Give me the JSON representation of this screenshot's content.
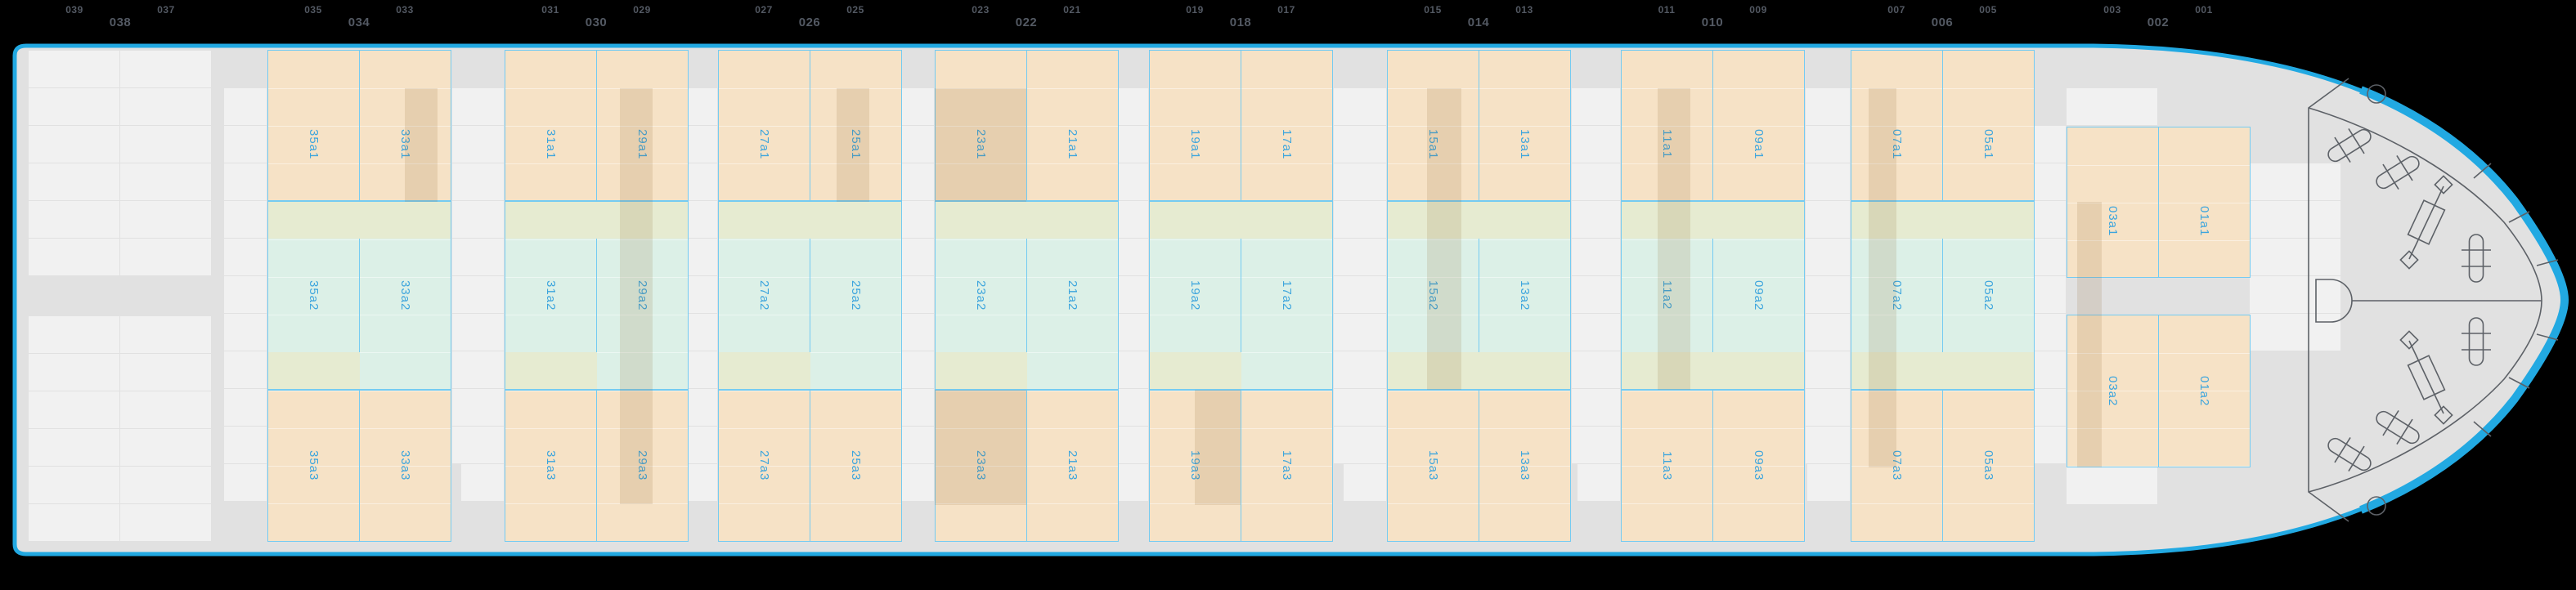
{
  "view": {
    "name": "Vessel deck stowage plan",
    "deck_row": "a"
  },
  "ruler": {
    "groups": [
      [
        "039",
        "038",
        "037"
      ],
      [
        "035",
        "034",
        "033"
      ],
      [
        "031",
        "030",
        "029"
      ],
      [
        "027",
        "026",
        "025"
      ],
      [
        "023",
        "022",
        "021"
      ],
      [
        "019",
        "018",
        "017"
      ],
      [
        "015",
        "014",
        "013"
      ],
      [
        "011",
        "010",
        "009"
      ],
      [
        "007",
        "006",
        "005"
      ],
      [
        "003",
        "002",
        "001"
      ]
    ]
  },
  "bays": [
    {
      "bay": "034",
      "cells": {
        "a1": [
          "35a1",
          "33a1"
        ],
        "a2": [
          "35a2",
          "33a2"
        ],
        "a3": [
          "35a3",
          "33a3"
        ]
      }
    },
    {
      "bay": "030",
      "cells": {
        "a1": [
          "31a1",
          "29a1"
        ],
        "a2": [
          "31a2",
          "29a2"
        ],
        "a3": [
          "31a3",
          "29a3"
        ]
      }
    },
    {
      "bay": "026",
      "cells": {
        "a1": [
          "27a1",
          "25a1"
        ],
        "a2": [
          "27a2",
          "25a2"
        ],
        "a3": [
          "27a3",
          "25a3"
        ]
      }
    },
    {
      "bay": "022",
      "cells": {
        "a1": [
          "23a1",
          "21a1"
        ],
        "a2": [
          "23a2",
          "21a2"
        ],
        "a3": [
          "23a3",
          "21a3"
        ]
      }
    },
    {
      "bay": "018",
      "cells": {
        "a1": [
          "19a1",
          "17a1"
        ],
        "a2": [
          "19a2",
          "17a2"
        ],
        "a3": [
          "19a3",
          "17a3"
        ]
      }
    },
    {
      "bay": "014",
      "cells": {
        "a1": [
          "15a1",
          "13a1"
        ],
        "a2": [
          "15a2",
          "13a2"
        ],
        "a3": [
          "15a3",
          "13a3"
        ]
      }
    },
    {
      "bay": "010",
      "cells": {
        "a1": [
          "11a1",
          "09a1"
        ],
        "a2": [
          "11a2",
          "09a2"
        ],
        "a3": [
          "11a3",
          "09a3"
        ]
      }
    },
    {
      "bay": "006",
      "cells": {
        "a1": [
          "07a1",
          "05a1"
        ],
        "a2": [
          "07a2",
          "05a2"
        ],
        "a3": [
          "07a3",
          "05a3"
        ]
      }
    },
    {
      "bay": "002",
      "cells": {
        "a1": [
          "03a1",
          "01a1"
        ],
        "a2": [
          "03a2",
          "01a2"
        ]
      }
    }
  ],
  "colors": {
    "background": "#000000",
    "hull_fill": "#e1e1e1",
    "hull_stroke": "#22a9e2",
    "slot_cell": "#f1f1f1",
    "block_peach": "#f6e2c6",
    "block_mint": "#dcf0e7",
    "block_olive_band": "#e6ebd1",
    "overlap_stripe": "rgba(140,100,45,0.15)",
    "block_border": "#74cbf2",
    "cell_label": "#3da5dd",
    "ruler_text": "#535963",
    "equipment_line": "#5d6167"
  },
  "equipment": {
    "items": [
      "forecastle-boundary",
      "deck-centerline",
      "bollard",
      "fairlead",
      "mooring-winch",
      "anchor-windlass"
    ]
  }
}
